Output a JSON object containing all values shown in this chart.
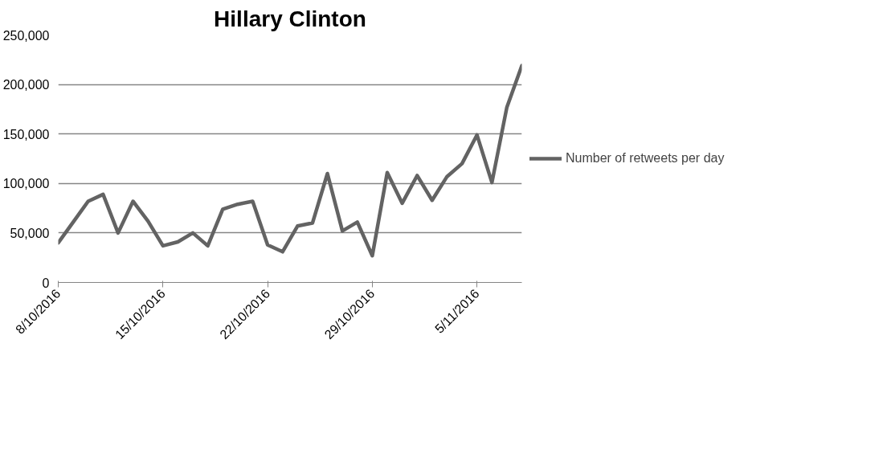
{
  "chart_data": {
    "type": "line",
    "title": "Hillary Clinton",
    "x": [
      "2016-10-08",
      "2016-10-09",
      "2016-10-10",
      "2016-10-11",
      "2016-10-12",
      "2016-10-13",
      "2016-10-14",
      "2016-10-15",
      "2016-10-16",
      "2016-10-17",
      "2016-10-18",
      "2016-10-19",
      "2016-10-20",
      "2016-10-21",
      "2016-10-22",
      "2016-10-23",
      "2016-10-24",
      "2016-10-25",
      "2016-10-26",
      "2016-10-27",
      "2016-10-28",
      "2016-10-29",
      "2016-10-30",
      "2016-10-31",
      "2016-11-01",
      "2016-11-02",
      "2016-11-03",
      "2016-11-04",
      "2016-11-05",
      "2016-11-06",
      "2016-11-07",
      "2016-11-08"
    ],
    "series": [
      {
        "name": "Number of retweets per day",
        "color": "#636363",
        "values": [
          40000,
          61000,
          82000,
          89000,
          50000,
          82000,
          62000,
          37000,
          41000,
          50000,
          37000,
          74000,
          79000,
          82000,
          38000,
          31000,
          57000,
          60000,
          110000,
          52000,
          61000,
          27000,
          111000,
          80000,
          108000,
          83000,
          107000,
          120000,
          149000,
          101000,
          177000,
          219000
        ]
      }
    ],
    "xlim": [
      "2016-10-08",
      "2016-11-08"
    ],
    "xticks": [
      {
        "value": "2016-10-08",
        "label": "8/10/2016"
      },
      {
        "value": "2016-10-15",
        "label": "15/10/2016"
      },
      {
        "value": "2016-10-22",
        "label": "22/10/2016"
      },
      {
        "value": "2016-10-29",
        "label": "29/10/2016"
      },
      {
        "value": "2016-11-05",
        "label": "5/11/2016"
      }
    ],
    "ylim": [
      0,
      250000
    ],
    "yticks": [
      0,
      {
        "value": 50000,
        "label": "50,000"
      },
      {
        "value": 100000,
        "label": "100,000"
      },
      {
        "value": 150000,
        "label": "150,000"
      },
      {
        "value": 200000,
        "label": "200,000"
      },
      {
        "value": 250000,
        "label": "250,000"
      }
    ],
    "grid": "y",
    "legend": "right",
    "line_style": "solid"
  }
}
